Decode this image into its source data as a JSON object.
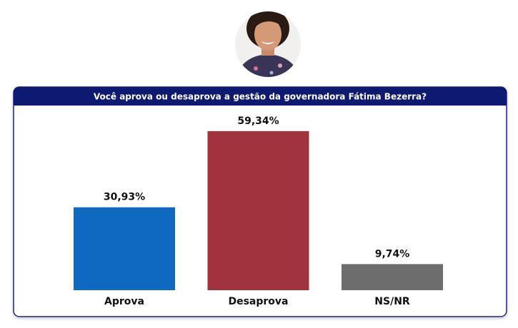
{
  "chart_data": {
    "type": "bar",
    "title": "Você aprova ou desaprova a gestão da governadora Fátima Bezerra?",
    "categories": [
      "Aprova",
      "Desaprova",
      "NS/NR"
    ],
    "values": [
      30.93,
      59.34,
      9.74
    ],
    "value_labels": [
      "30,93%",
      "59,34%",
      "9,74%"
    ],
    "colors": [
      "#0f69c0",
      "#a0333e",
      "#6d6d6d"
    ]
  }
}
